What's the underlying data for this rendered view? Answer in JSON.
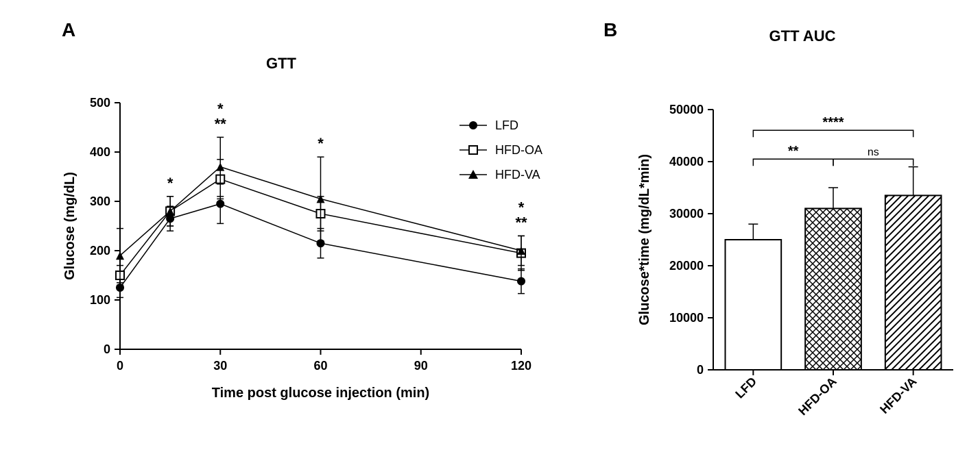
{
  "panelA": {
    "label": "A",
    "title": "GTT",
    "title_fontsize": 22,
    "type": "line-scatter",
    "xlabel": "Time post glucose injection (min)",
    "ylabel": "Glucose (mg/dL)",
    "label_fontsize": 20,
    "xlim": [
      0,
      120
    ],
    "ylim": [
      0,
      500
    ],
    "xticks": [
      0,
      30,
      60,
      90,
      120
    ],
    "yticks": [
      0,
      100,
      200,
      300,
      400,
      500
    ],
    "tick_fontsize": 18,
    "background_color": "#ffffff",
    "line_color": "#000000",
    "series": [
      {
        "name": "LFD",
        "marker": "filled-circle",
        "x": [
          0,
          15,
          30,
          60,
          120
        ],
        "y": [
          125,
          265,
          295,
          215,
          138
        ],
        "err": [
          20,
          25,
          40,
          30,
          25
        ]
      },
      {
        "name": "HFD-OA",
        "marker": "open-square",
        "x": [
          0,
          15,
          30,
          60,
          120
        ],
        "y": [
          150,
          280,
          345,
          275,
          195
        ],
        "err": [
          20,
          30,
          40,
          35,
          35
        ]
      },
      {
        "name": "HFD-VA",
        "marker": "filled-triangle",
        "x": [
          0,
          15,
          30,
          60,
          120
        ],
        "y": [
          190,
          280,
          370,
          305,
          200
        ],
        "err": [
          55,
          30,
          60,
          85,
          30
        ]
      }
    ],
    "annotations": [
      {
        "x": 15,
        "labels": [
          "*"
        ]
      },
      {
        "x": 30,
        "labels": [
          "*",
          "**"
        ]
      },
      {
        "x": 60,
        "labels": [
          "*"
        ]
      },
      {
        "x": 120,
        "labels": [
          "*",
          "**"
        ]
      }
    ],
    "legend": {
      "items": [
        "LFD",
        "HFD-OA",
        "HFD-VA"
      ],
      "markers": [
        "filled-circle",
        "open-square",
        "filled-triangle"
      ],
      "fontsize": 18
    }
  },
  "panelB": {
    "label": "B",
    "title": "GTT AUC",
    "title_fontsize": 22,
    "type": "bar",
    "ylabel": "Glucose*time (mg/dL*min)",
    "label_fontsize": 20,
    "ylim": [
      0,
      50000
    ],
    "yticks": [
      0,
      10000,
      20000,
      30000,
      40000,
      50000
    ],
    "tick_fontsize": 18,
    "background_color": "#ffffff",
    "categories": [
      "LFD",
      "HFD-OA",
      "HFD-VA"
    ],
    "values": [
      25000,
      31000,
      33500
    ],
    "err": [
      3000,
      4000,
      5500
    ],
    "fills": [
      "plain",
      "crosshatch",
      "diagonal"
    ],
    "bar_width": 0.7,
    "outline_color": "#000000",
    "comparisons": [
      {
        "from": 0,
        "to": 1,
        "label": "**",
        "level": 1
      },
      {
        "from": 1,
        "to": 2,
        "label": "ns",
        "level": 1
      },
      {
        "from": 0,
        "to": 2,
        "label": "****",
        "level": 2
      }
    ]
  }
}
